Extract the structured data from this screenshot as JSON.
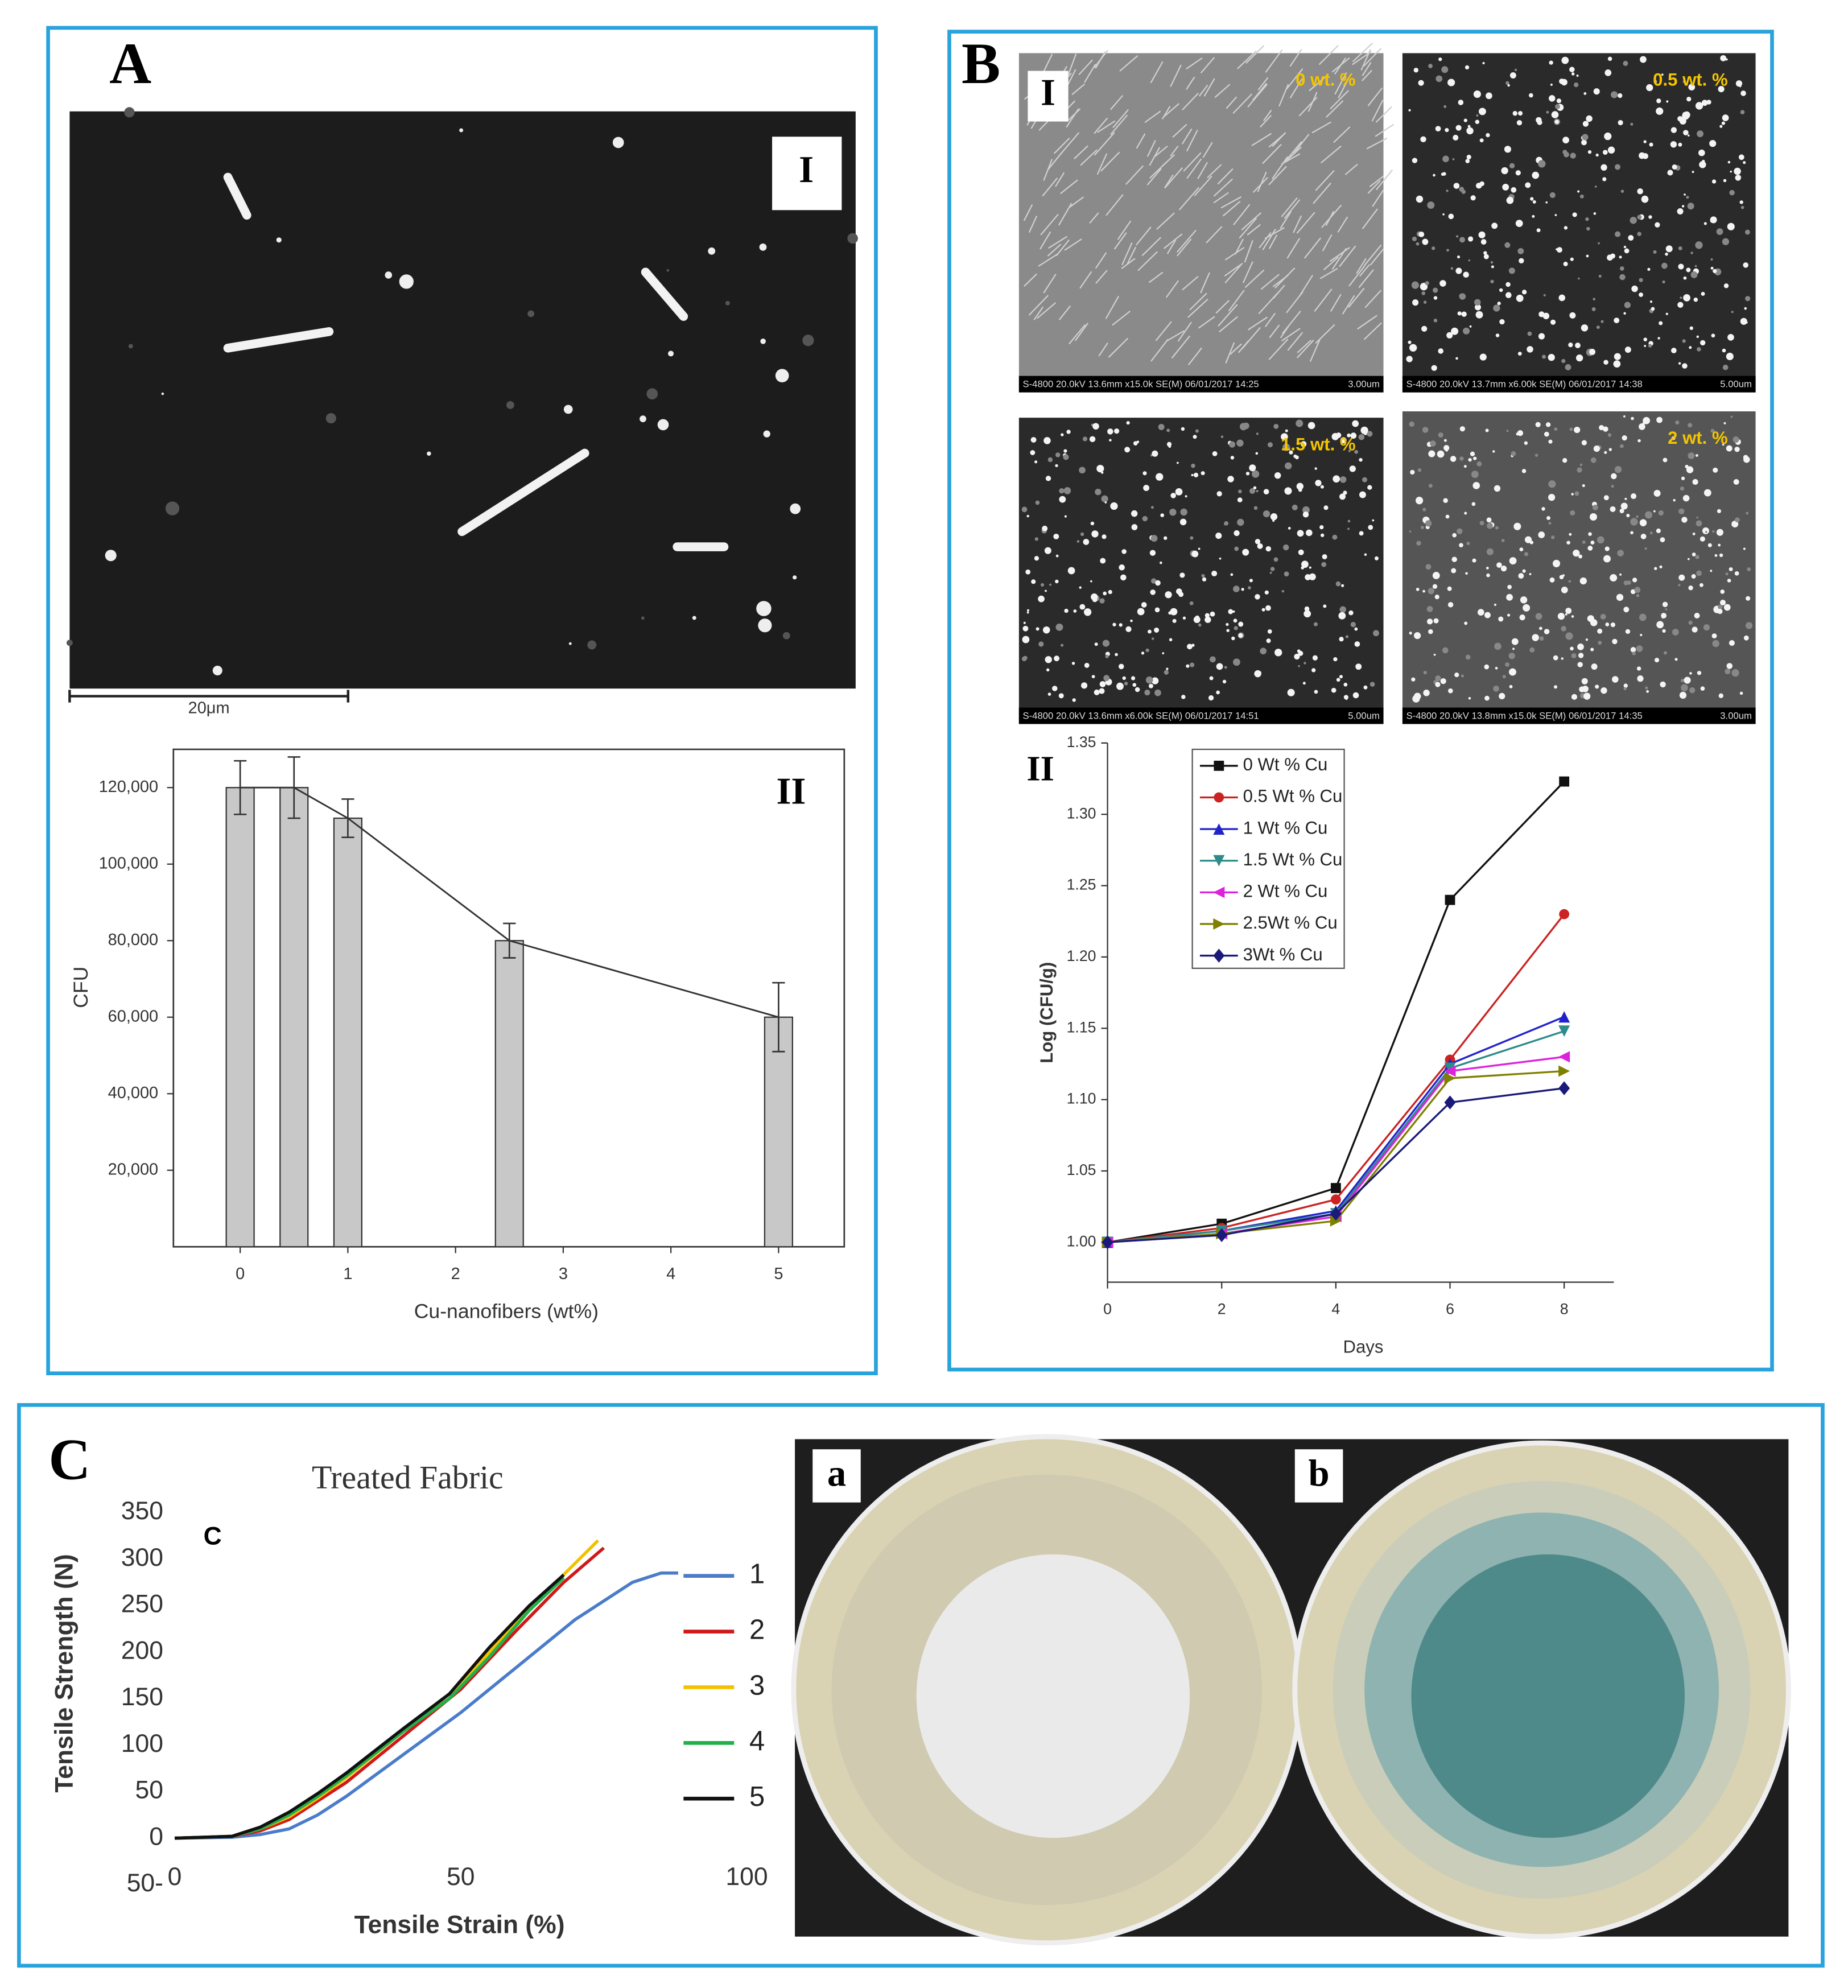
{
  "panels": {
    "A": {
      "label": "A",
      "image_label": "I",
      "scale_bar": "20μm"
    },
    "B": {
      "label": "B",
      "image_label": "I",
      "sem": [
        {
          "tag": "0 wt. %",
          "footer": "S-4800 20.0kV 13.6mm x15.0k SE(M) 06/01/2017 14:25",
          "scale": "3.00um"
        },
        {
          "tag": "0.5 wt. %",
          "footer": "S-4800 20.0kV 13.7mm x6.00k SE(M) 06/01/2017 14:38",
          "scale": "5.00um"
        },
        {
          "tag": "1.5 wt. %",
          "footer": "S-4800 20.0kV 13.6mm x6.00k SE(M) 06/01/2017 14:51",
          "scale": "5.00um"
        },
        {
          "tag": "2 wt. %",
          "footer": "S-4800 20.0kV 13.8mm x15.0k SE(M) 06/01/2017 14:35",
          "scale": "3.00um"
        }
      ]
    },
    "C": {
      "label": "C",
      "photos": [
        "a",
        "b"
      ]
    }
  },
  "chart_data": [
    {
      "type": "bar",
      "annotation": "II",
      "x_label": "Cu-nanofibers (wt%)",
      "y_label": "CFU",
      "x": [
        0,
        0.5,
        1,
        2.5,
        5
      ],
      "values": [
        120000,
        120000,
        112000,
        80000,
        60000
      ],
      "errors": [
        7000,
        8000,
        5000,
        4500,
        9000
      ],
      "color": "#c8c8c8",
      "line_color": "#333333",
      "xlim": [
        -0.62,
        5.61
      ],
      "xticks": [
        0,
        1,
        2,
        3,
        4,
        5
      ],
      "ylim": [
        0,
        130000
      ],
      "yticks": [
        {
          "value": 20000,
          "label": "20,000"
        },
        {
          "value": 40000,
          "label": "40,000"
        },
        {
          "value": 60000,
          "label": "60,000"
        },
        {
          "value": 80000,
          "label": "80,000"
        },
        {
          "value": 100000,
          "label": "100,000"
        },
        {
          "value": 120000,
          "label": "120,000"
        }
      ]
    },
    {
      "type": "line",
      "annotation": "II",
      "x_label": "Days",
      "y_label": "Log (CFU/g)",
      "x": [
        0,
        2,
        4,
        6,
        8
      ],
      "series": [
        {
          "name": "0 Wt % Cu",
          "color": "#111111",
          "marker": "square",
          "values": [
            1.0,
            1.013,
            1.038,
            1.24,
            1.323
          ]
        },
        {
          "name": "0.5 Wt % Cu",
          "color": "#cc2222",
          "marker": "circle",
          "values": [
            1.0,
            1.01,
            1.03,
            1.128,
            1.23
          ]
        },
        {
          "name": "1 Wt % Cu",
          "color": "#2222cc",
          "marker": "triangle-up",
          "values": [
            1.0,
            1.008,
            1.022,
            1.125,
            1.158
          ]
        },
        {
          "name": "1.5 Wt % Cu",
          "color": "#2e8b8b",
          "marker": "triangle-down",
          "values": [
            1.0,
            1.008,
            1.02,
            1.122,
            1.148
          ]
        },
        {
          "name": "2 Wt % Cu",
          "color": "#dd22dd",
          "marker": "triangle-left",
          "values": [
            1.0,
            1.006,
            1.018,
            1.12,
            1.13
          ]
        },
        {
          "name": "2.5Wt % Cu",
          "color": "#808000",
          "marker": "triangle-right",
          "values": [
            1.0,
            1.006,
            1.015,
            1.115,
            1.12
          ]
        },
        {
          "name": "3Wt % Cu",
          "color": "#1a1a7a",
          "marker": "diamond",
          "values": [
            1.0,
            1.005,
            1.02,
            1.098,
            1.108
          ]
        }
      ],
      "xlim": [
        0,
        8.87
      ],
      "xticks": [
        0,
        2,
        4,
        6,
        8
      ],
      "ylim": [
        0.972,
        1.35
      ],
      "yticks": [
        {
          "value": 1.0,
          "label": "1.00"
        },
        1.05,
        {
          "value": 1.1,
          "label": "1.10"
        },
        1.15,
        {
          "value": 1.2,
          "label": "1.20"
        },
        1.25,
        {
          "value": 1.3,
          "label": "1.30"
        },
        1.35
      ]
    },
    {
      "type": "line",
      "title": "Treated Fabric",
      "annotation": "C",
      "x_label": "Tensile Strain (%)",
      "y_label": "Tensile Strength (N)",
      "series": [
        {
          "name": "1",
          "color": "#4a7cc9",
          "x": [
            0,
            10,
            15,
            20,
            25,
            30,
            40,
            50,
            60,
            70,
            80,
            85,
            88
          ],
          "values": [
            0,
            1,
            4,
            10,
            25,
            45,
            90,
            135,
            185,
            235,
            275,
            285,
            285
          ]
        },
        {
          "name": "2",
          "color": "#d01818",
          "x": [
            0,
            10,
            15,
            20,
            25,
            30,
            40,
            50,
            60,
            68,
            75
          ],
          "values": [
            0,
            2,
            8,
            20,
            40,
            60,
            110,
            160,
            225,
            275,
            312
          ]
        },
        {
          "name": "3",
          "color": "#f5c000",
          "x": [
            0,
            10,
            15,
            20,
            25,
            30,
            40,
            48,
            55,
            65,
            74
          ],
          "values": [
            0,
            2,
            10,
            23,
            43,
            65,
            115,
            155,
            200,
            265,
            320
          ]
        },
        {
          "name": "4",
          "color": "#22b04a",
          "x": [
            0,
            10,
            15,
            20,
            25,
            30,
            40,
            48,
            55,
            62,
            68
          ],
          "values": [
            0,
            2,
            10,
            25,
            45,
            67,
            115,
            150,
            195,
            245,
            280
          ]
        },
        {
          "name": "5",
          "color": "#111111",
          "x": [
            0,
            10,
            15,
            20,
            25,
            30,
            40,
            48,
            55,
            62,
            68
          ],
          "values": [
            0,
            2,
            12,
            28,
            48,
            70,
            118,
            155,
            205,
            250,
            283
          ]
        }
      ],
      "xlim": [
        0,
        100
      ],
      "xticks": [
        0,
        50,
        100
      ],
      "ylim": [
        -50,
        350
      ],
      "yticks": [
        {
          "value": -50,
          "label": "50-"
        },
        0,
        50,
        100,
        150,
        200,
        250,
        300,
        350
      ]
    }
  ]
}
